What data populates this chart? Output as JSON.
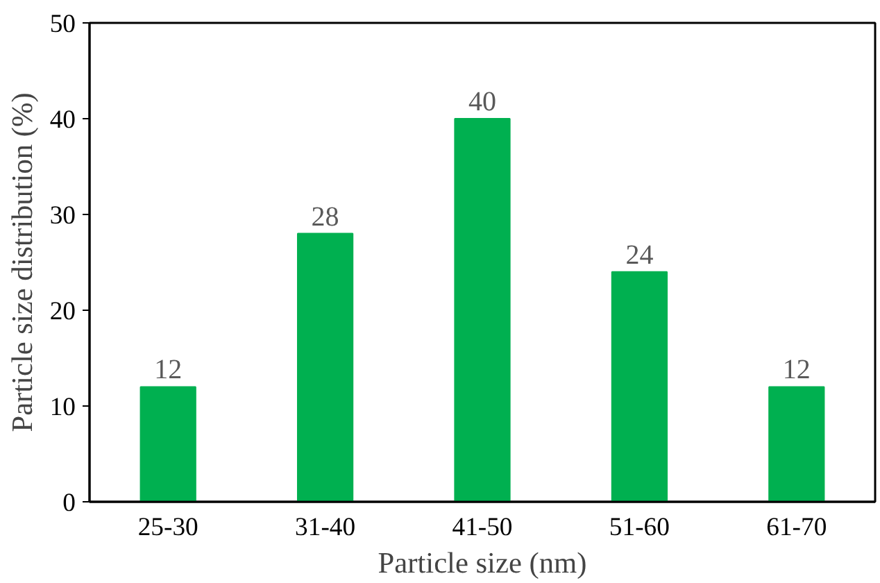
{
  "chart_data": {
    "type": "bar",
    "xlabel": "Particle size (nm)",
    "ylabel": "Particle size distribution (%)",
    "categories": [
      "25-30",
      "31-40",
      "41-50",
      "51-60",
      "61-70"
    ],
    "values": [
      12,
      28,
      40,
      24,
      12
    ],
    "color": "#00b050",
    "ylim": [
      0,
      50
    ],
    "yticks": [
      0,
      10,
      20,
      30,
      40,
      50
    ],
    "data_labels": true,
    "grid": false
  }
}
